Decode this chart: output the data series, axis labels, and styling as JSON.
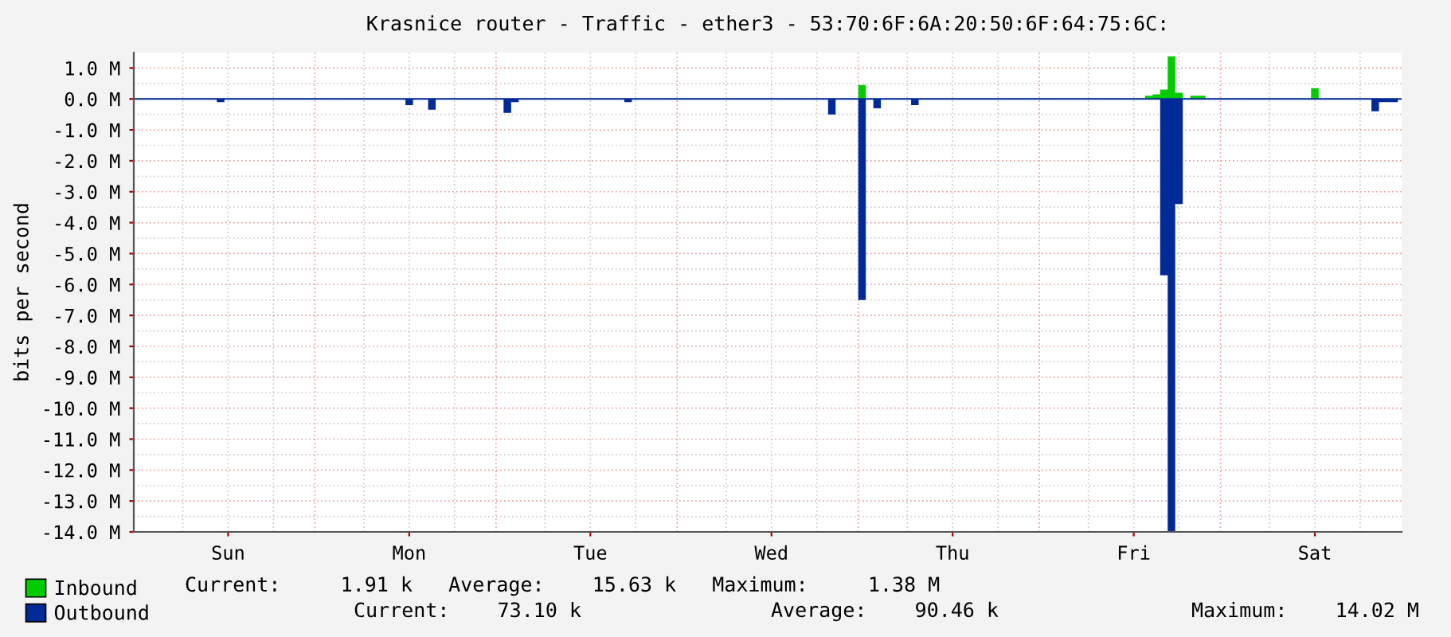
{
  "chart_data": {
    "type": "area",
    "title": "Krasnice router - Traffic - ether3 - 53:70:6F:6A:20:50:6F:64:75:6C:",
    "ylabel": "bits per second",
    "categories": [
      null,
      null,
      null,
      null,
      null,
      null,
      null,
      null,
      null,
      null,
      null,
      null,
      "Sun",
      null,
      null,
      null,
      null,
      null,
      null,
      null,
      null,
      null,
      null,
      null,
      null,
      null,
      null,
      null,
      null,
      null,
      null,
      null,
      null,
      null,
      null,
      null,
      "Mon",
      null,
      null,
      null,
      null,
      null,
      null,
      null,
      null,
      null,
      null,
      null,
      null,
      null,
      null,
      null,
      null,
      null,
      null,
      null,
      null,
      null,
      null,
      null,
      "Tue",
      null,
      null,
      null,
      null,
      null,
      null,
      null,
      null,
      null,
      null,
      null,
      null,
      null,
      null,
      null,
      null,
      null,
      null,
      null,
      null,
      null,
      null,
      null,
      "Wed",
      null,
      null,
      null,
      null,
      null,
      null,
      null,
      null,
      null,
      null,
      null,
      null,
      null,
      null,
      null,
      null,
      null,
      null,
      null,
      null,
      null,
      null,
      null,
      "Thu",
      null,
      null,
      null,
      null,
      null,
      null,
      null,
      null,
      null,
      null,
      null,
      null,
      null,
      null,
      null,
      null,
      null,
      null,
      null,
      null,
      null,
      null,
      null,
      "Fri",
      null,
      null,
      null,
      null,
      null,
      null,
      null,
      null,
      null,
      null,
      null,
      null,
      null,
      null,
      null,
      null,
      null,
      null,
      null,
      null,
      null,
      null,
      null,
      "Sat",
      null,
      null,
      null,
      null,
      null,
      null,
      null,
      null,
      null,
      null,
      null
    ],
    "series": [
      {
        "name": "Inbound",
        "color": "#00cc00",
        "values": [
          0.01,
          0.01,
          0.01,
          0.01,
          0.01,
          0.01,
          0.01,
          0.01,
          0.01,
          0.01,
          0.01,
          0.01,
          0.01,
          0.01,
          0.01,
          0.01,
          0.01,
          0.01,
          0.01,
          0.01,
          0.01,
          0.01,
          0.01,
          0.01,
          0.01,
          0.01,
          0.01,
          0.01,
          0.01,
          0.01,
          0.01,
          0.01,
          0.01,
          0.01,
          0.01,
          0.01,
          0.01,
          0.01,
          0.01,
          0.01,
          0.01,
          0.01,
          0.01,
          0.01,
          0.01,
          0.01,
          0.01,
          0.01,
          0.01,
          0.01,
          0.01,
          0.01,
          0.01,
          0.01,
          0.01,
          0.01,
          0.01,
          0.01,
          0.01,
          0.01,
          0.01,
          0.01,
          0.01,
          0.01,
          0.01,
          0.01,
          0.01,
          0.01,
          0.01,
          0.01,
          0.01,
          0.01,
          0.01,
          0.01,
          0.01,
          0.01,
          0.01,
          0.01,
          0.01,
          0.01,
          0.01,
          0.01,
          0.01,
          0.01,
          0.01,
          0.01,
          0.01,
          0.01,
          0.01,
          0.01,
          0.01,
          0.01,
          0.01,
          0.01,
          0.01,
          0.01,
          0.45,
          0.01,
          0.01,
          0.01,
          0.01,
          0.01,
          0.01,
          0.01,
          0.01,
          0.01,
          0.01,
          0.01,
          0.01,
          0.01,
          0.01,
          0.01,
          0.01,
          0.01,
          0.01,
          0.01,
          0.01,
          0.01,
          0.01,
          0.01,
          0.01,
          0.01,
          0.01,
          0.01,
          0.01,
          0.01,
          0.01,
          0.01,
          0.01,
          0.01,
          0.01,
          0.01,
          0.01,
          0.01,
          0.1,
          0.15,
          0.3,
          1.38,
          0.2,
          0.01,
          0.1,
          0.1,
          0.01,
          0.01,
          0.01,
          0.01,
          0.01,
          0.01,
          0.01,
          0.01,
          0.01,
          0.01,
          0.01,
          0.01,
          0.01,
          0.01,
          0.35,
          0.01,
          0.01,
          0.01,
          0.01,
          0.01,
          0.01,
          0.01,
          0.01,
          0.01,
          0.01,
          0.01
        ]
      },
      {
        "name": "Outbound",
        "color": "#002a97",
        "values": [
          -0.02,
          -0.02,
          -0.02,
          -0.02,
          -0.02,
          -0.02,
          -0.02,
          -0.02,
          -0.02,
          -0.02,
          -0.02,
          -0.1,
          -0.02,
          -0.02,
          -0.02,
          -0.02,
          -0.02,
          -0.02,
          -0.02,
          -0.02,
          -0.02,
          -0.02,
          -0.02,
          -0.02,
          -0.02,
          -0.02,
          -0.02,
          -0.02,
          -0.02,
          -0.02,
          -0.02,
          -0.02,
          -0.02,
          -0.02,
          -0.02,
          -0.02,
          -0.2,
          -0.02,
          -0.02,
          -0.35,
          -0.02,
          -0.02,
          -0.02,
          -0.02,
          -0.02,
          -0.02,
          -0.02,
          -0.02,
          -0.02,
          -0.45,
          -0.1,
          -0.02,
          -0.02,
          -0.02,
          -0.02,
          -0.02,
          -0.02,
          -0.02,
          -0.02,
          -0.02,
          -0.02,
          -0.02,
          -0.02,
          -0.02,
          -0.02,
          -0.1,
          -0.02,
          -0.02,
          -0.02,
          -0.02,
          -0.02,
          -0.02,
          -0.02,
          -0.02,
          -0.02,
          -0.02,
          -0.02,
          -0.02,
          -0.02,
          -0.02,
          -0.02,
          -0.02,
          -0.02,
          -0.02,
          -0.02,
          -0.02,
          -0.02,
          -0.02,
          -0.02,
          -0.02,
          -0.02,
          -0.02,
          -0.5,
          -0.02,
          -0.02,
          -0.02,
          -6.5,
          -0.02,
          -0.3,
          -0.02,
          -0.02,
          -0.02,
          -0.02,
          -0.2,
          -0.02,
          -0.02,
          -0.02,
          -0.02,
          -0.02,
          -0.02,
          -0.02,
          -0.02,
          -0.02,
          -0.02,
          -0.02,
          -0.02,
          -0.02,
          -0.02,
          -0.02,
          -0.02,
          -0.02,
          -0.02,
          -0.02,
          -0.02,
          -0.02,
          -0.02,
          -0.02,
          -0.02,
          -0.02,
          -0.02,
          -0.02,
          -0.02,
          -0.02,
          -0.02,
          -0.02,
          -0.02,
          -5.7,
          -14.0,
          -3.4,
          -0.02,
          -0.02,
          -0.02,
          -0.02,
          -0.02,
          -0.02,
          -0.02,
          -0.02,
          -0.02,
          -0.02,
          -0.02,
          -0.02,
          -0.02,
          -0.02,
          -0.02,
          -0.02,
          -0.02,
          -0.02,
          -0.02,
          -0.02,
          -0.02,
          -0.02,
          -0.02,
          -0.02,
          -0.02,
          -0.4,
          -0.1,
          -0.1,
          -0.1
        ]
      }
    ],
    "ylim": [
      -14,
      1.5
    ],
    "yticks": [
      {
        "value": 1,
        "label": "1.0 M"
      },
      {
        "value": 0,
        "label": "0.0 M"
      },
      {
        "value": -1,
        "label": "-1.0 M"
      },
      {
        "value": -2,
        "label": "-2.0 M"
      },
      {
        "value": -3,
        "label": "-3.0 M"
      },
      {
        "value": -4,
        "label": "-4.0 M"
      },
      {
        "value": -5,
        "label": "-5.0 M"
      },
      {
        "value": -6,
        "label": "-6.0 M"
      },
      {
        "value": -7,
        "label": "-7.0 M"
      },
      {
        "value": -8,
        "label": "-8.0 M"
      },
      {
        "value": -9,
        "label": "-9.0 M"
      },
      {
        "value": -10,
        "label": "-10.0 M"
      },
      {
        "value": -11,
        "label": "-11.0 M"
      },
      {
        "value": -12,
        "label": "-12.0 M"
      },
      {
        "value": -13,
        "label": "-13.0 M"
      },
      {
        "value": -14,
        "label": "-14.0 M"
      }
    ],
    "grid": true,
    "legend": "bottom",
    "annotations": [
      "Current:     1.91 k   Average:    15.63 k   Maximum:     1.38 M",
      "Current:    73.10 k",
      "Average:    90.46 k",
      "Maximum:    14.02 M"
    ]
  }
}
